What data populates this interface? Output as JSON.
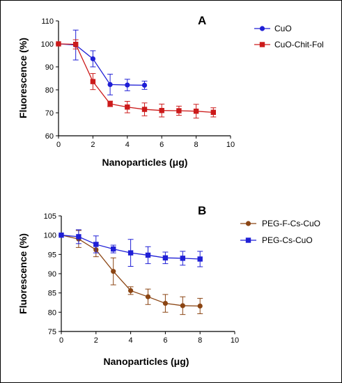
{
  "chart_data": [
    {
      "type": "line",
      "panel_label": "A",
      "xlabel": "Nanoparticles (μg)",
      "ylabel": "Fluorescence (%)",
      "xlim": [
        0,
        10
      ],
      "ylim": [
        60,
        110
      ],
      "xticks": [
        0,
        2,
        4,
        6,
        8,
        10
      ],
      "yticks": [
        60,
        70,
        80,
        90,
        100,
        110
      ],
      "grid": false,
      "legend_position": "top-right",
      "series": [
        {
          "name": "CuO",
          "color": "#1f1fd6",
          "marker": "circle",
          "x": [
            0,
            1,
            2,
            3,
            4,
            5
          ],
          "y": [
            100,
            99.5,
            93.5,
            82.3,
            82.1,
            82
          ],
          "err": [
            0,
            6.5,
            3.5,
            4.5,
            2.5,
            1.8
          ]
        },
        {
          "name": "CuO-Chit-Fol",
          "color": "#cc1a1a",
          "marker": "square",
          "x": [
            0,
            1,
            2,
            3,
            4,
            5,
            6,
            7,
            8,
            9
          ],
          "y": [
            100,
            99.8,
            83.6,
            73.9,
            72.5,
            71.5,
            71,
            70.9,
            70.7,
            70.2
          ],
          "err": [
            0,
            2,
            3.5,
            1.2,
            2.5,
            2.8,
            2.8,
            2,
            3,
            2
          ]
        }
      ]
    },
    {
      "type": "line",
      "panel_label": "B",
      "xlabel": "Nanoparticles (μg)",
      "ylabel": "Fluorescence (%)",
      "xlim": [
        0,
        10
      ],
      "ylim": [
        75,
        105
      ],
      "xticks": [
        0,
        2,
        4,
        6,
        8,
        10
      ],
      "yticks": [
        75,
        80,
        85,
        90,
        95,
        100,
        105
      ],
      "grid": false,
      "legend_position": "top-right",
      "series": [
        {
          "name": "PEG-F-Cs-CuO",
          "color": "#8b4513",
          "marker": "circle",
          "x": [
            0,
            1,
            2,
            3,
            4,
            5,
            6,
            7,
            8
          ],
          "y": [
            100,
            99,
            96.2,
            90.6,
            85.6,
            84,
            82.3,
            81.7,
            81.6
          ],
          "err": [
            0,
            2.2,
            1.8,
            3.5,
            1,
            2,
            2.3,
            2.3,
            2
          ]
        },
        {
          "name": "PEG-Cs-CuO",
          "color": "#1f1fd6",
          "marker": "square",
          "x": [
            0,
            1,
            2,
            3,
            4,
            5,
            6,
            7,
            8
          ],
          "y": [
            100,
            99.6,
            97.6,
            96.4,
            95.4,
            94.8,
            94.1,
            94,
            93.8
          ],
          "err": [
            0,
            1.8,
            2.2,
            1,
            3.5,
            2.2,
            1.5,
            1.8,
            2
          ]
        }
      ]
    }
  ]
}
